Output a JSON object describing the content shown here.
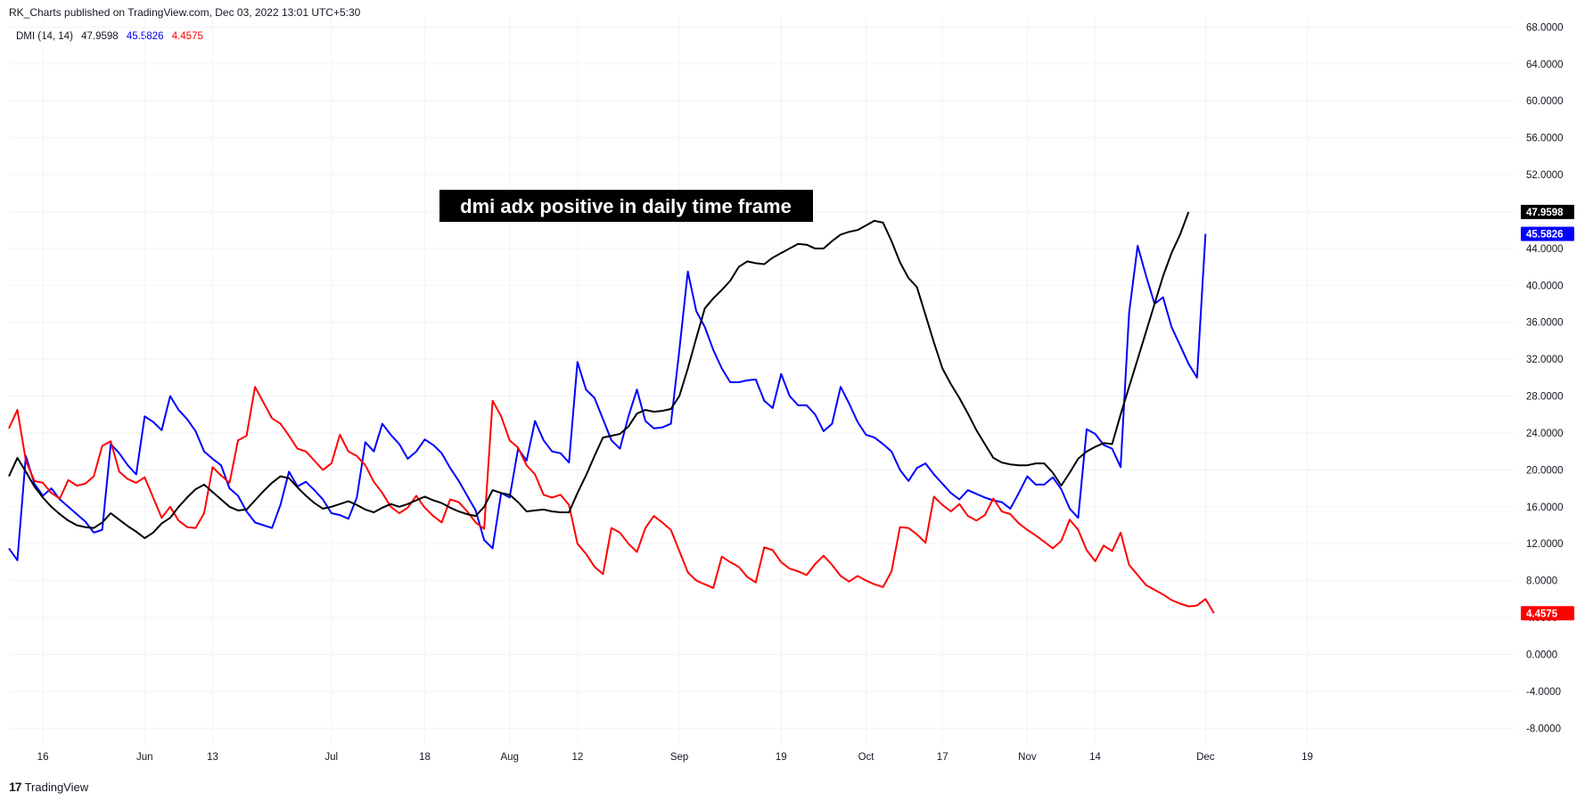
{
  "header": {
    "published": "RK_Charts published on TradingView.com, Dec 03, 2022 13:01 UTC+5:30"
  },
  "legend": {
    "indicator": "DMI (14, 14)",
    "adx": "47.9598",
    "plus_di": "45.5826",
    "minus_di": "4.4575"
  },
  "footer": {
    "brand": "TradingView",
    "logo_icon": "tradingview-logo-icon"
  },
  "colors": {
    "adx": "#000000",
    "plus_di": "#0000ff",
    "minus_di": "#ff0000",
    "grid": "#f0f3fa",
    "annotation_bg": "#000000"
  },
  "chart_data": {
    "type": "line",
    "annotation": "dmi adx positive in daily time frame",
    "ylim": [
      -10.0,
      69.0
    ],
    "y_ticks": [
      "68.0000",
      "64.0000",
      "60.0000",
      "56.0000",
      "52.0000",
      "48.0000",
      "44.0000",
      "40.0000",
      "36.0000",
      "32.0000",
      "28.0000",
      "24.0000",
      "20.0000",
      "16.0000",
      "12.0000",
      "8.0000",
      "4.0000",
      "0.0000",
      "-4.0000",
      "-8.0000"
    ],
    "x_ticks": [
      {
        "label": "16",
        "index": 4
      },
      {
        "label": "Jun",
        "index": 16
      },
      {
        "label": "13",
        "index": 24
      },
      {
        "label": "Jul",
        "index": 38
      },
      {
        "label": "18",
        "index": 49
      },
      {
        "label": "Aug",
        "index": 59
      },
      {
        "label": "12",
        "index": 67
      },
      {
        "label": "Sep",
        "index": 79
      },
      {
        "label": "19",
        "index": 91
      },
      {
        "label": "Oct",
        "index": 101
      },
      {
        "label": "17",
        "index": 110
      },
      {
        "label": "Nov",
        "index": 120
      },
      {
        "label": "14",
        "index": 128
      },
      {
        "label": "Dec",
        "index": 141
      },
      {
        "label": "19",
        "index": 153
      }
    ],
    "x_count": 165,
    "last_values": {
      "adx": "47.9598",
      "plus_di": "45.5826",
      "minus_di": "4.4575"
    },
    "series": [
      {
        "key": "plus_di",
        "values": [
          11.5,
          10.2,
          21.5,
          18.5,
          17.2,
          18.0,
          16.8,
          16.0,
          15.2,
          14.4,
          13.2,
          13.5,
          22.8,
          21.8,
          20.5,
          19.5,
          25.8,
          25.2,
          24.3,
          28.0,
          26.5,
          25.5,
          24.2,
          22.0,
          21.2,
          20.5,
          18.0,
          17.2,
          15.5,
          14.3,
          14.0,
          13.7,
          16.2,
          19.8,
          18.2,
          18.7,
          17.8,
          16.8,
          15.3,
          15.1,
          14.7,
          17.0,
          23.0,
          22.0,
          25.0,
          23.8,
          22.8,
          21.2,
          22.0,
          23.3,
          22.7,
          21.8,
          20.2,
          18.8,
          17.2,
          15.6,
          12.4,
          11.5,
          17.5,
          17.0,
          22.3,
          21.0,
          25.3,
          23.2,
          22.0,
          21.8,
          20.8,
          31.7,
          28.7,
          27.8,
          25.5,
          23.2,
          22.3,
          25.8,
          28.7,
          25.3,
          24.5,
          24.6,
          25.0,
          33.0,
          41.5,
          37.2,
          35.5,
          33.0,
          31.0,
          29.5,
          29.5,
          29.7,
          29.8,
          27.5,
          26.7,
          30.4,
          28.0,
          27.0,
          27.0,
          26.0,
          24.2,
          25.0,
          29.0,
          27.2,
          25.2,
          23.8,
          23.5,
          22.8,
          22.0,
          20.0,
          18.8,
          20.2,
          20.7,
          19.5,
          18.5,
          17.5,
          16.8,
          17.8,
          17.4,
          17.0,
          16.7,
          16.5,
          15.8,
          17.5,
          19.3,
          18.4,
          18.4,
          19.2,
          17.9,
          15.8,
          14.8,
          24.4,
          23.9,
          22.7,
          22.3,
          20.3,
          37.0,
          44.3,
          41.0,
          38.0,
          38.7,
          35.5,
          33.5,
          31.5,
          30.0,
          45.5826
        ]
      },
      {
        "key": "minus_di",
        "values": [
          24.5,
          26.5,
          21.0,
          18.8,
          18.6,
          17.5,
          16.9,
          18.9,
          18.3,
          18.5,
          19.3,
          22.6,
          23.1,
          19.8,
          19.0,
          18.6,
          19.2,
          17.0,
          14.8,
          16.0,
          14.5,
          13.8,
          13.7,
          15.3,
          20.3,
          19.4,
          18.6,
          23.2,
          23.7,
          29.0,
          27.3,
          25.6,
          25.0,
          23.7,
          22.3,
          22.0,
          21.0,
          20.0,
          20.7,
          23.8,
          22.0,
          21.5,
          20.5,
          18.7,
          17.5,
          16.0,
          15.3,
          15.9,
          17.2,
          15.9,
          15.0,
          14.3,
          16.8,
          16.5,
          15.5,
          14.3,
          13.6,
          27.5,
          25.8,
          23.2,
          22.4,
          20.5,
          19.5,
          17.3,
          17.0,
          17.3,
          16.2,
          12.0,
          10.9,
          9.5,
          8.7,
          13.7,
          13.2,
          12.0,
          11.1,
          13.7,
          15.0,
          14.3,
          13.5,
          11.2,
          8.9,
          8.0,
          7.6,
          7.2,
          10.6,
          10.0,
          9.5,
          8.4,
          7.8,
          11.6,
          11.3,
          10.0,
          9.3,
          9.0,
          8.6,
          9.8,
          10.7,
          9.7,
          8.5,
          7.9,
          8.5,
          8.0,
          7.6,
          7.3,
          9.0,
          13.8,
          13.7,
          13.0,
          12.1,
          17.1,
          16.2,
          15.5,
          16.3,
          15.0,
          14.5,
          15.1,
          16.9,
          15.5,
          15.2,
          14.2,
          13.5,
          12.9,
          12.2,
          11.5,
          12.3,
          14.6,
          13.5,
          11.3,
          10.1,
          11.8,
          11.2,
          13.2,
          9.7,
          8.6,
          7.5,
          7.0,
          6.5,
          5.9,
          5.5,
          5.2,
          5.3,
          6.0,
          4.4575
        ]
      },
      {
        "key": "adx",
        "values": [
          19.3,
          21.3,
          19.8,
          18.2,
          17.0,
          16.0,
          15.2,
          14.5,
          14.0,
          13.8,
          13.7,
          14.3,
          15.3,
          14.6,
          13.9,
          13.3,
          12.6,
          13.2,
          14.2,
          14.8,
          16.0,
          17.0,
          17.9,
          18.4,
          17.6,
          16.8,
          16.0,
          15.6,
          15.7,
          16.7,
          17.7,
          18.6,
          19.3,
          19.1,
          18.1,
          17.2,
          16.4,
          15.8,
          16.0,
          16.3,
          16.6,
          16.2,
          15.7,
          15.4,
          15.9,
          16.3,
          16.0,
          16.3,
          16.7,
          17.1,
          16.7,
          16.4,
          15.9,
          15.5,
          15.2,
          15.0,
          16.0,
          17.8,
          17.5,
          17.3,
          16.5,
          15.5,
          15.6,
          15.7,
          15.5,
          15.4,
          15.4,
          17.5,
          19.4,
          21.5,
          23.5,
          23.7,
          23.9,
          24.7,
          26.1,
          26.5,
          26.3,
          26.4,
          26.6,
          28.0,
          31.0,
          34.3,
          37.5,
          38.6,
          39.5,
          40.5,
          42.0,
          42.6,
          42.4,
          42.3,
          43.0,
          43.5,
          44.0,
          44.5,
          44.4,
          44.0,
          44.0,
          44.8,
          45.5,
          45.8,
          46.0,
          46.5,
          47.0,
          46.8,
          44.8,
          42.5,
          40.8,
          39.8,
          36.8,
          33.8,
          31.0,
          29.3,
          27.8,
          26.1,
          24.3,
          22.8,
          21.3,
          20.8,
          20.6,
          20.5,
          20.5,
          20.7,
          20.7,
          19.7,
          18.3,
          19.7,
          21.2,
          22.0,
          22.5,
          22.9,
          22.8,
          26.0,
          29.0,
          32.0,
          35.0,
          38.0,
          41.0,
          43.5,
          45.5,
          47.9598
        ]
      }
    ]
  }
}
